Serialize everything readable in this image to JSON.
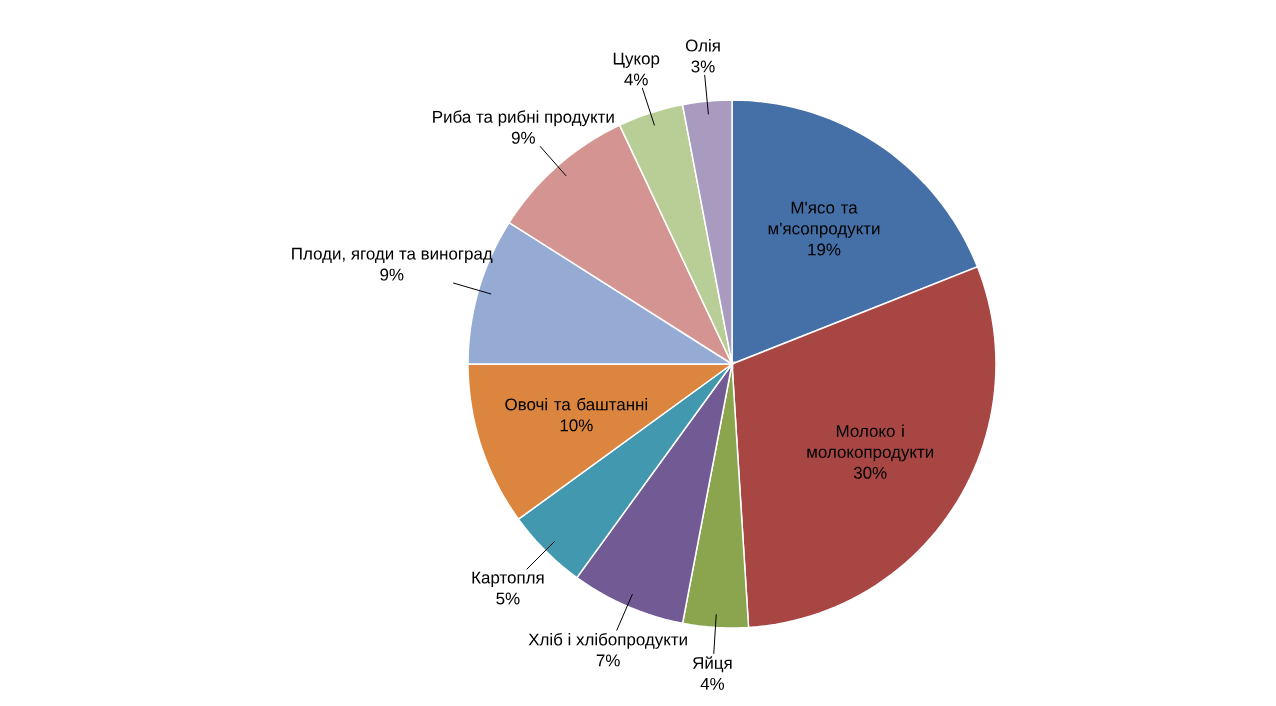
{
  "chart_data": {
    "type": "pie",
    "categories": [
      "М'ясо та м'ясопродукти",
      "Молоко і молокопродукти",
      "Яйця",
      "Хліб і хлібопродукти",
      "Картопля",
      "Овочі та баштанні",
      "Плоди, ягоди та виноград",
      "Риба та рибні продукти",
      "Цукор",
      "Олія"
    ],
    "values": [
      19,
      30,
      4,
      7,
      5,
      10,
      9,
      9,
      4,
      3
    ],
    "value_labels": [
      "19%",
      "30%",
      "4%",
      "7%",
      "5%",
      "10%",
      "9%",
      "9%",
      "4%",
      "3%"
    ],
    "colors": [
      "#4470a7",
      "#a84644",
      "#8ba54e",
      "#725a94",
      "#4198af",
      "#dc853e",
      "#95abd3",
      "#d49592",
      "#b9ce97",
      "#a99abf"
    ]
  }
}
